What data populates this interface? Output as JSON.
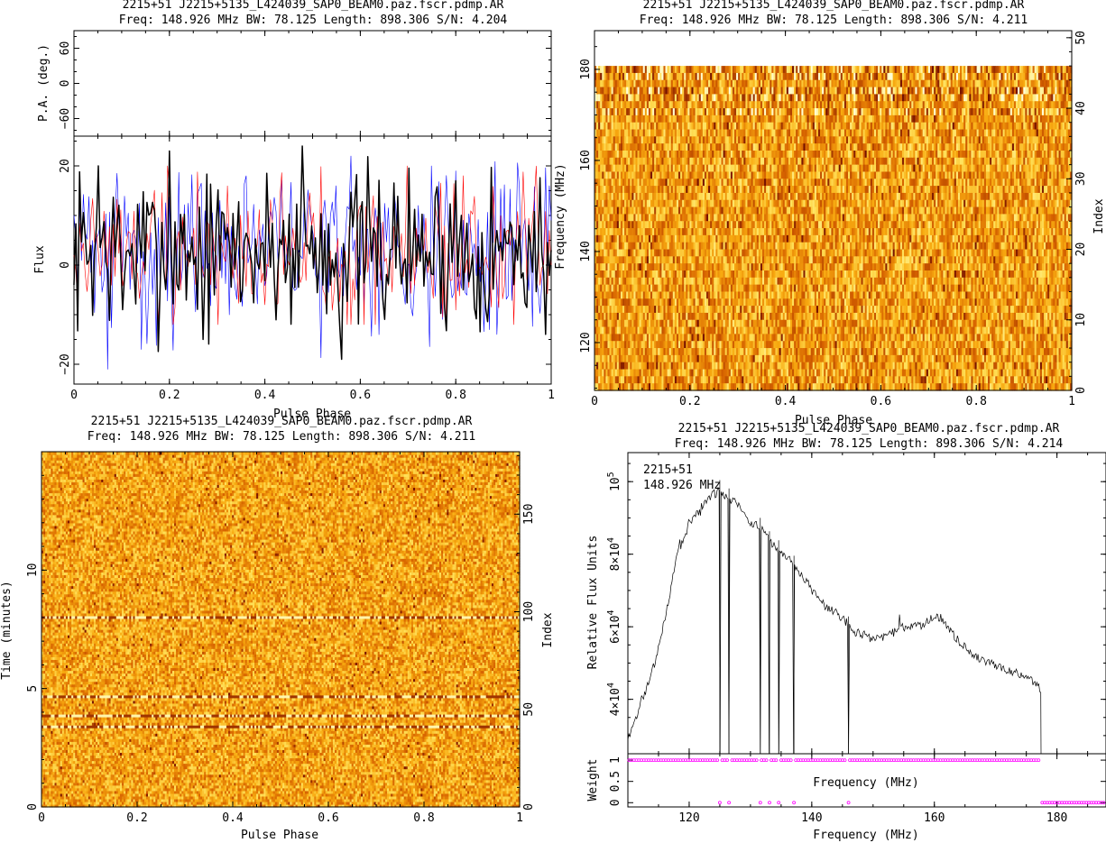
{
  "plots": {
    "pa_profile": {
      "title_line1": "2215+51 J2215+5135_L424039_SAP0_BEAM0.paz.fscr.pdmp.AR",
      "title_line2": "Freq: 148.926 MHz BW: 78.125 Length: 898.306 S/N: 4.204",
      "pa_ylabel": "P.A. (deg.)",
      "flux_ylabel": "Flux",
      "xlabel": "Pulse Phase"
    },
    "phase_freq": {
      "title_line1": "2215+51 J2215+5135_L424039_SAP0_BEAM0.paz.fscr.pdmp.AR",
      "title_line2": "Freq: 148.926 MHz BW: 78.125 Length: 898.306 S/N: 4.211",
      "ylabel": "Frequency (MHz)",
      "y2label": "Index",
      "xlabel": "Pulse Phase"
    },
    "phase_time": {
      "title_line1": "2215+51 J2215+5135_L424039_SAP0_BEAM0.paz.fscr.pdmp.AR",
      "title_line2": "Freq: 148.926 MHz BW: 78.125 Length: 898.306 S/N: 4.211",
      "ylabel": "Time (minutes)",
      "y2label": "Index",
      "xlabel": "Pulse Phase"
    },
    "bandpass": {
      "title_line1": "2215+51 J2215+5135_L424039_SAP0_BEAM0.paz.fscr.pdmp.AR",
      "title_line2": "Freq: 148.926 MHz BW: 78.125 Length: 898.306 S/N: 4.214",
      "annot_line1": "2215+51",
      "annot_line2": "148.926 MHz",
      "ylabel": "Relative Flux Units",
      "weight_ylabel": "Weight",
      "freq_label_inner": "Frequency (MHz)",
      "xlabel": "Frequency (MHz)"
    }
  },
  "chart_data": [
    {
      "type": "line",
      "panel": "pa_profile",
      "axes": [
        {
          "name": "P.A.",
          "ylim": [
            -90,
            90
          ],
          "yticks": [
            -60,
            0,
            60
          ],
          "ytick_labels": [
            "−60",
            "0",
            "60"
          ]
        },
        {
          "name": "Flux",
          "ylim": [
            -24,
            26
          ],
          "yticks": [
            -20,
            0,
            20
          ],
          "ytick_labels": [
            "−20",
            "0",
            "20"
          ]
        }
      ],
      "xlim": [
        0,
        1
      ],
      "xticks": [
        0,
        0.2,
        0.4,
        0.6,
        0.8,
        1
      ],
      "xtick_labels": [
        "0",
        "0.2",
        "0.4",
        "0.6",
        "0.8",
        "1"
      ],
      "series": [
        {
          "color": "#000000",
          "n": 256,
          "range": [
            -19,
            24
          ],
          "sample": [
            [
              0.0,
              -4
            ],
            [
              0.05,
              20
            ],
            [
              0.1,
              -9
            ],
            [
              0.2,
              23
            ],
            [
              0.27,
              -15
            ],
            [
              0.48,
              24
            ],
            [
              0.56,
              -19
            ],
            [
              0.8,
              17
            ],
            [
              1.0,
              3
            ]
          ]
        },
        {
          "color": "#ff0000",
          "n": 256,
          "range": [
            -12,
            20
          ],
          "sample": [
            [
              0.0,
              2
            ],
            [
              0.2,
              15
            ],
            [
              0.4,
              -8
            ],
            [
              0.6,
              12
            ],
            [
              1.0,
              0
            ]
          ]
        },
        {
          "color": "#0000ff",
          "n": 256,
          "range": [
            -21,
            22
          ],
          "sample": [
            [
              0.0,
              10
            ],
            [
              0.07,
              -21
            ],
            [
              0.14,
              -17
            ],
            [
              0.36,
              18
            ],
            [
              0.58,
              22
            ],
            [
              0.75,
              20
            ],
            [
              0.8,
              19
            ],
            [
              1.0,
              9
            ]
          ]
        }
      ]
    },
    {
      "type": "heatmap",
      "panel": "phase_freq",
      "xlim": [
        0,
        1
      ],
      "xticks": [
        0,
        0.2,
        0.4,
        0.6,
        0.8,
        1
      ],
      "xtick_labels": [
        "0",
        "0.2",
        "0.4",
        "0.6",
        "0.8",
        "1"
      ],
      "ylim": [
        109.5,
        188.5
      ],
      "yticks": [
        120,
        140,
        160,
        180
      ],
      "ytick_labels": [
        "120",
        "140",
        "160",
        "180"
      ],
      "y2lim": [
        0,
        51
      ],
      "y2ticks": [
        0,
        10,
        20,
        30,
        40,
        50
      ],
      "y2tick_labels": [
        "0",
        "10",
        "20",
        "30",
        "40",
        "50"
      ],
      "colormap": "heat",
      "channels": 51,
      "phase_bins": 256,
      "flat_bands_from_top": [
        0,
        1,
        2,
        3,
        4
      ],
      "noisy_bands_from_top": [
        5,
        6,
        8,
        9,
        11
      ]
    },
    {
      "type": "heatmap",
      "panel": "phase_time",
      "xlim": [
        0,
        1
      ],
      "xticks": [
        0,
        0.2,
        0.4,
        0.6,
        0.8,
        1
      ],
      "xtick_labels": [
        "0",
        "0.2",
        "0.4",
        "0.6",
        "0.8",
        "1"
      ],
      "ylim": [
        0,
        15.0
      ],
      "yticks": [
        0,
        5,
        10
      ],
      "ytick_labels": [
        "0",
        "5",
        "10"
      ],
      "y2lim": [
        0,
        182
      ],
      "y2ticks": [
        0,
        50,
        100,
        150
      ],
      "y2tick_labels": [
        "0",
        "50",
        "100",
        "150"
      ],
      "colormap": "heat",
      "subints": 182,
      "phase_bins": 256,
      "bright_rows_minutes": [
        3.35,
        3.75,
        4.6,
        8.0
      ]
    },
    {
      "type": "line",
      "panel": "bandpass",
      "xlim": [
        110,
        188
      ],
      "xticks": [
        120,
        140,
        160,
        180
      ],
      "xtick_labels": [
        "120",
        "140",
        "160",
        "180"
      ],
      "ylim": [
        25000,
        108000
      ],
      "yticks": [
        40000,
        60000,
        80000,
        100000
      ],
      "ytick_mantissa": [
        "4×10",
        "6×10",
        "8×10",
        "10"
      ],
      "ytick_exponent": [
        "4",
        "4",
        "4",
        "5"
      ],
      "spectrum": {
        "x": [
          110,
          111,
          112,
          113,
          114,
          115,
          116,
          117,
          118,
          119,
          120,
          121,
          122,
          123,
          124,
          125,
          126,
          127,
          128,
          129,
          130,
          131,
          132,
          133,
          134,
          135,
          136,
          137,
          138,
          139,
          140,
          141,
          142,
          143,
          144,
          145,
          146,
          147,
          148,
          149,
          150,
          151,
          152,
          153,
          154,
          155,
          156,
          157,
          158,
          159,
          160,
          161,
          162,
          163,
          164,
          165,
          166,
          167,
          168,
          169,
          170,
          171,
          172,
          173,
          174,
          175,
          176,
          177,
          177.4
        ],
        "y": [
          29000,
          33000,
          39000,
          43000,
          48000,
          54000,
          62000,
          70000,
          80000,
          84000,
          88000,
          91000,
          92000,
          95000,
          96500,
          97500,
          95500,
          95000,
          93500,
          91000,
          89000,
          88000,
          87000,
          84000,
          82000,
          81000,
          79000,
          77500,
          75000,
          73000,
          70000,
          68000,
          66000,
          65000,
          64000,
          62000,
          61000,
          58500,
          58000,
          57500,
          56500,
          57500,
          57000,
          58000,
          59000,
          60000,
          60000,
          60500,
          60500,
          61500,
          63000,
          62500,
          60500,
          58000,
          56000,
          54500,
          53000,
          51500,
          50500,
          50000,
          49500,
          48500,
          48000,
          47500,
          46500,
          46000,
          45000,
          43500,
          41500
        ]
      },
      "zero_weight_channels_mhz": [
        125.0,
        126.5,
        131.6,
        133.1,
        134.6,
        137.1,
        146.0
      ],
      "weight_axis": {
        "ylim": [
          -0.1,
          1.15
        ],
        "yticks": [
          0,
          0.5,
          1
        ],
        "ytick_labels": [
          "0",
          "0.5",
          "1"
        ]
      },
      "weights_marker_color": "#ff00ff",
      "weights": "1 from 110 to 177.4 MHz except zero-weight channels; 0 from 177.4 to 188 MHz"
    }
  ]
}
